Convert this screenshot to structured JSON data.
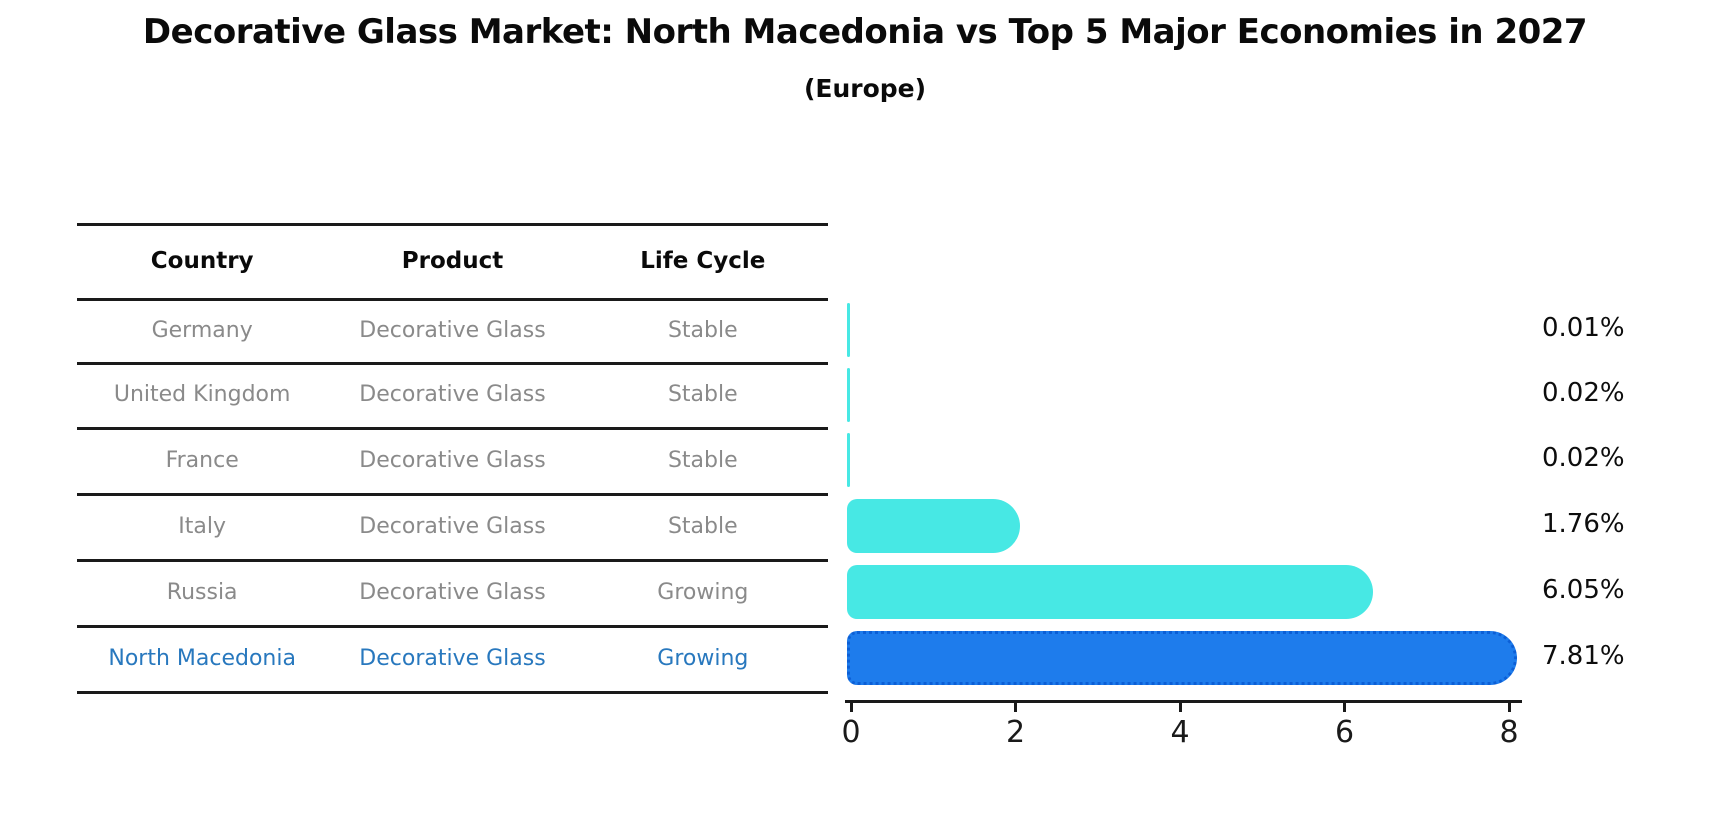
{
  "title": "Decorative Glass Market: North Macedonia vs Top 5 Major Economies in 2027",
  "subtitle": "(Europe)",
  "table": {
    "headers": [
      "Country",
      "Product",
      "Life Cycle"
    ],
    "rows": [
      {
        "country": "Germany",
        "product": "Decorative Glass",
        "life_cycle": "Stable",
        "highlight": false
      },
      {
        "country": "United Kingdom",
        "product": "Decorative Glass",
        "life_cycle": "Stable",
        "highlight": false
      },
      {
        "country": "France",
        "product": "Decorative Glass",
        "life_cycle": "Stable",
        "highlight": false
      },
      {
        "country": "Italy",
        "product": "Decorative Glass",
        "life_cycle": "Stable",
        "highlight": false
      },
      {
        "country": "Russia",
        "product": "Decorative Glass",
        "life_cycle": "Growing",
        "highlight": false
      },
      {
        "country": "North Macedonia",
        "product": "Decorative Glass",
        "life_cycle": "Growing",
        "highlight": true
      }
    ]
  },
  "chart_data": {
    "type": "bar",
    "orientation": "horizontal",
    "title": "Decorative Glass Market: North Macedonia vs Top 5 Major Economies in 2027",
    "subtitle": "(Europe)",
    "categories": [
      "Germany",
      "United Kingdom",
      "France",
      "Italy",
      "Russia",
      "North Macedonia"
    ],
    "values": [
      0.01,
      0.02,
      0.02,
      1.76,
      6.05,
      7.81
    ],
    "value_labels": [
      "0.01%",
      "0.02%",
      "0.02%",
      "1.76%",
      "6.05%",
      "7.81%"
    ],
    "unit": "percent",
    "xticks": [
      "0",
      "2",
      "4",
      "6",
      "8"
    ],
    "xtick_values": [
      0,
      2,
      4,
      6,
      8
    ],
    "xlim": [
      0,
      8.2
    ],
    "grid": false,
    "legend": false,
    "highlight_index": 5
  },
  "colors": {
    "bar_fill": "#47e8e4",
    "highlight_fill": "#1e7cec",
    "highlight_edge": "#0c5fd6",
    "highlight_text": "#2878be",
    "table_text": "#8a8a8a",
    "line": "#1a1a1a",
    "text": "#0a0a0a"
  }
}
